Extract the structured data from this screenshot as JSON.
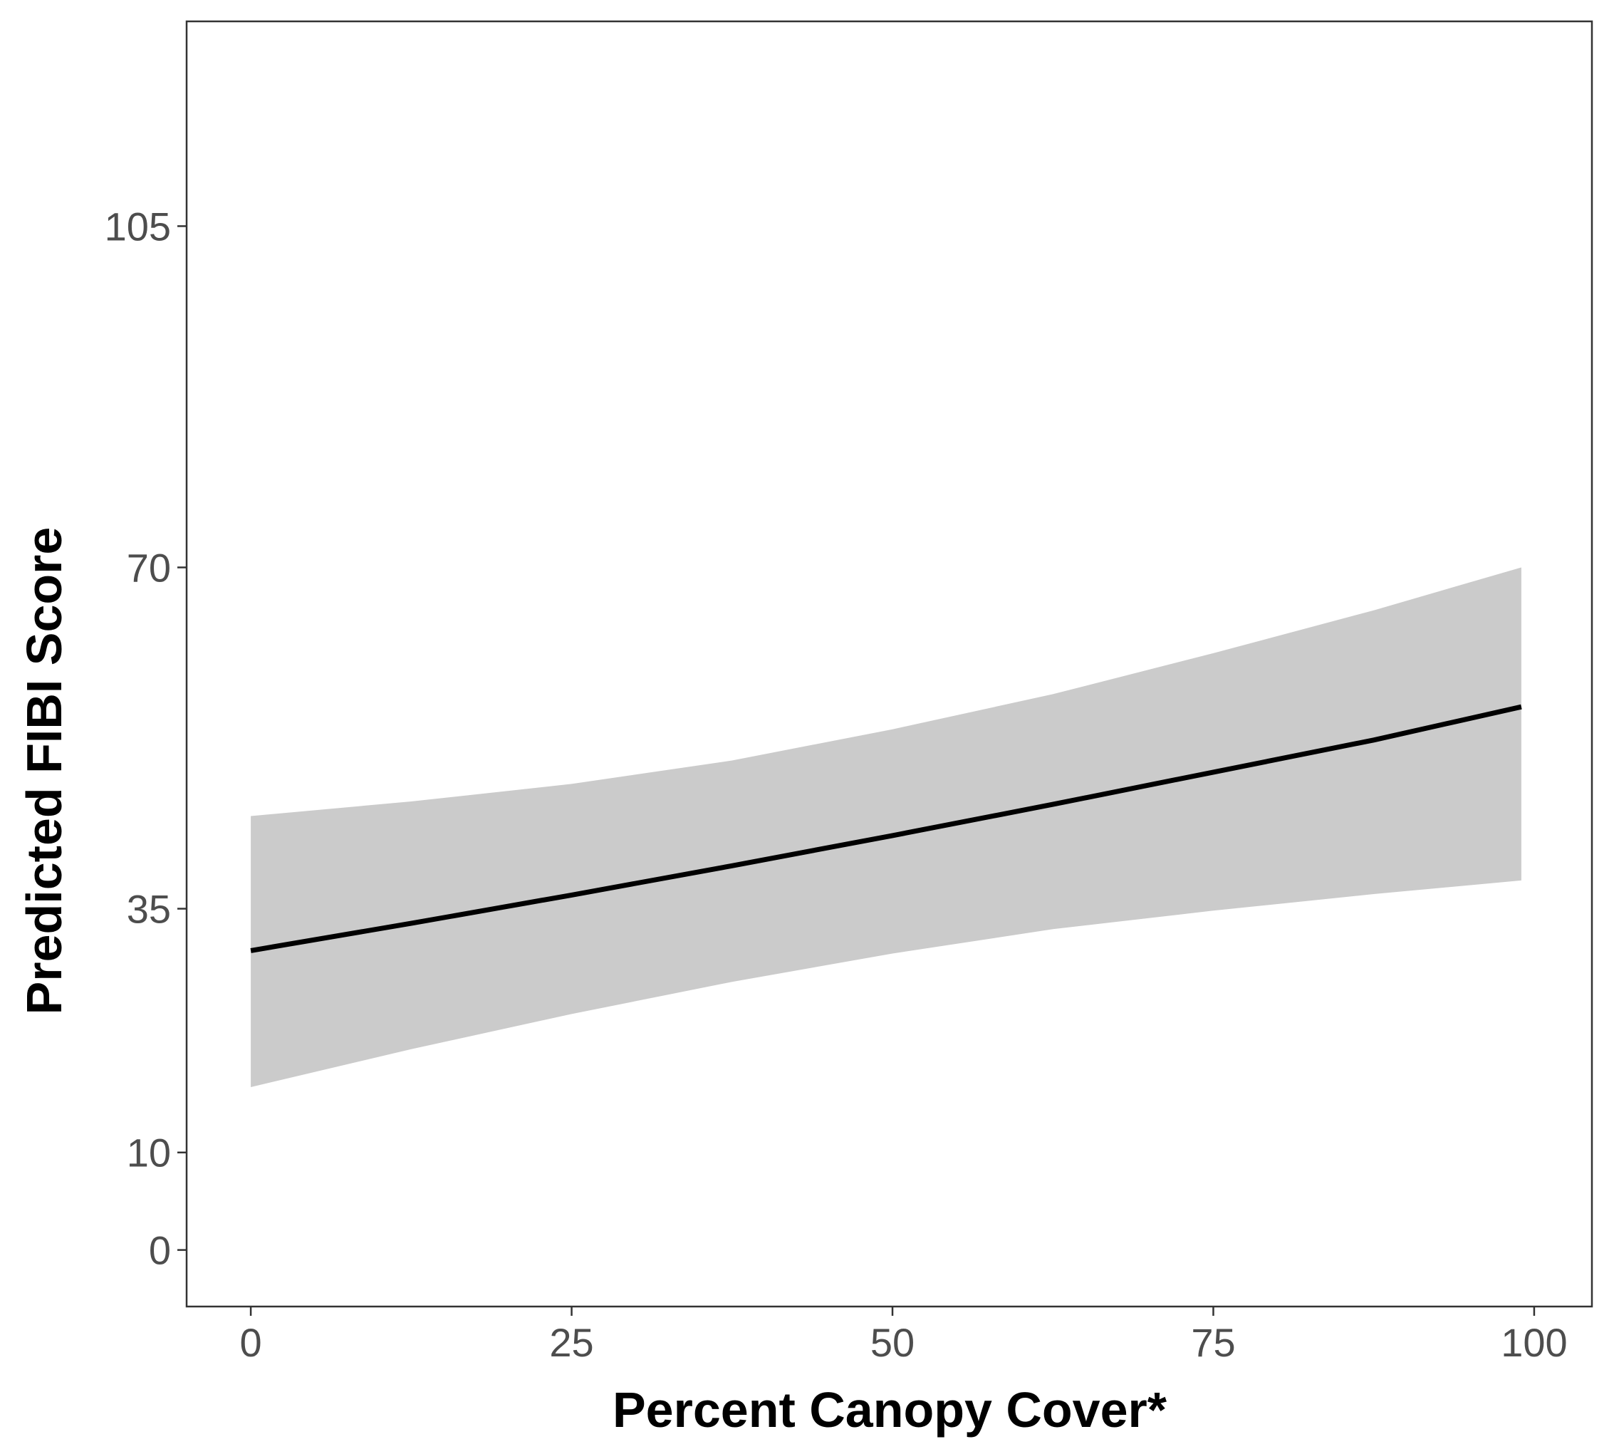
{
  "chart_data": {
    "type": "line",
    "title": "",
    "xlabel": "Percent Canopy Cover*",
    "ylabel": "Predicted FIBI Score",
    "xlim": [
      -5,
      104.5
    ],
    "ylim": [
      -5.8,
      126
    ],
    "x_ticks": [
      0,
      25,
      50,
      75,
      100
    ],
    "y_ticks": [
      0,
      10,
      35,
      70,
      105
    ],
    "grid": false,
    "legend": "none",
    "series": [
      {
        "x": [
          0,
          12.5,
          25,
          37.5,
          50,
          62.5,
          75,
          87.5,
          99
        ],
        "y": [
          30.7,
          33.5,
          36.4,
          39.4,
          42.5,
          45.7,
          49.0,
          52.3,
          55.7
        ],
        "lower": [
          16.7,
          20.6,
          24.2,
          27.5,
          30.4,
          32.9,
          34.8,
          36.5,
          37.9
        ],
        "upper": [
          44.5,
          46.0,
          47.8,
          50.2,
          53.4,
          57.0,
          61.2,
          65.6,
          70.0
        ]
      }
    ],
    "colors": {
      "line": "#000000",
      "band": "#cbcbcb",
      "frame": "#333333",
      "tick_label": "#4d4d4d"
    }
  }
}
